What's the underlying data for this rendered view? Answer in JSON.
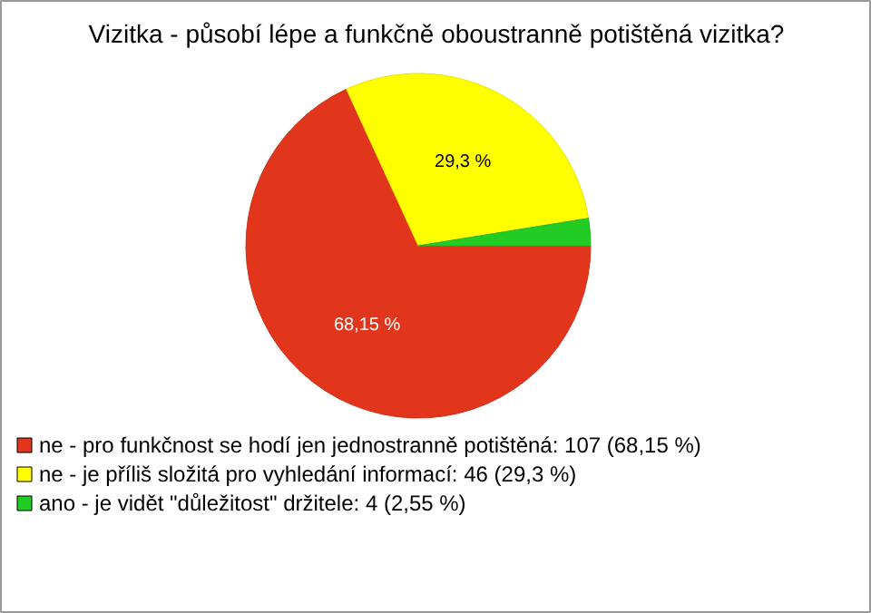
{
  "chart_data": {
    "type": "pie",
    "title": "Vizitka - působí lépe a funkčně oboustranně potištěná vizitka?",
    "categories": [
      "ne - pro funkčnost se hodí jen jednostranně potištěná: 107 (68,15 %)",
      "ne - je příliš složitá pro vyhledání informací: 46 (29,3 %)",
      "ano - je vidět \"důležitost\" držitele: 4 (2,55 %)"
    ],
    "values": [
      68.15,
      29.3,
      2.55
    ],
    "colors": [
      "#e2361c",
      "#ffff00",
      "#22cc22"
    ],
    "value_labels": [
      "68,15 %",
      "29,3 %",
      null
    ],
    "legend": "bottom"
  }
}
